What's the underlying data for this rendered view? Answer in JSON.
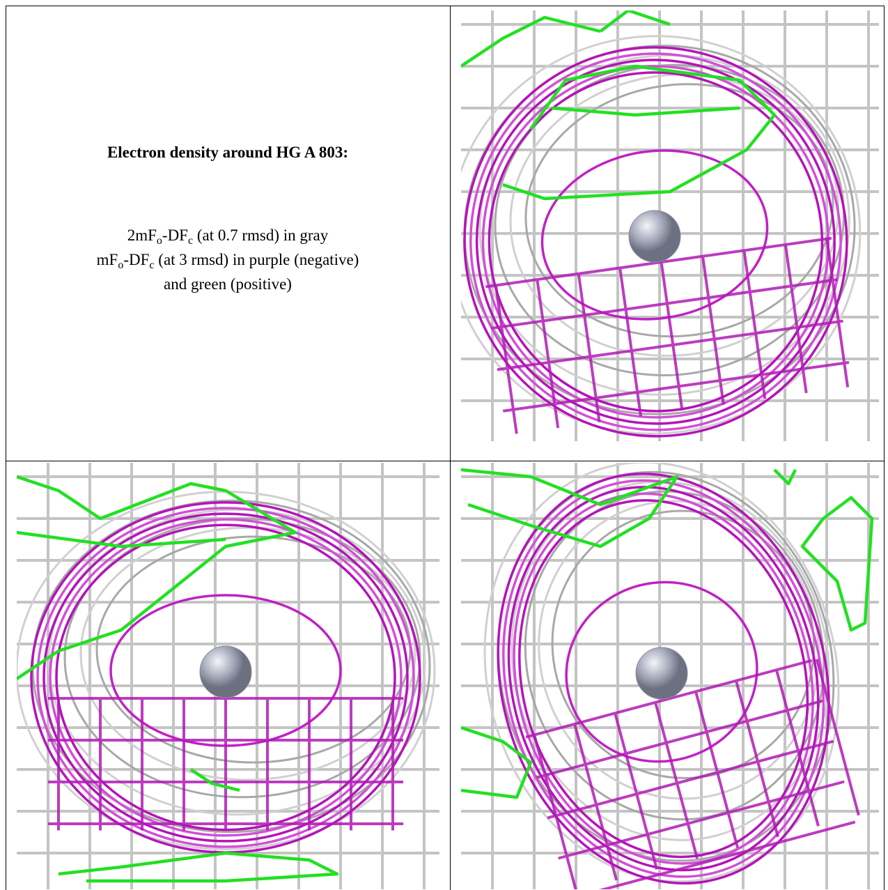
{
  "caption": {
    "title": "Electron density around HG A 803:",
    "lines": [
      [
        "2mF",
        "o",
        "-DF",
        "c",
        " (at 0.7 rmsd) in gray"
      ],
      [
        "mF",
        "o",
        "-DF",
        "c",
        " (at 3 rmsd) in purple (negative)"
      ],
      [
        "and green (positive)"
      ]
    ]
  }
}
